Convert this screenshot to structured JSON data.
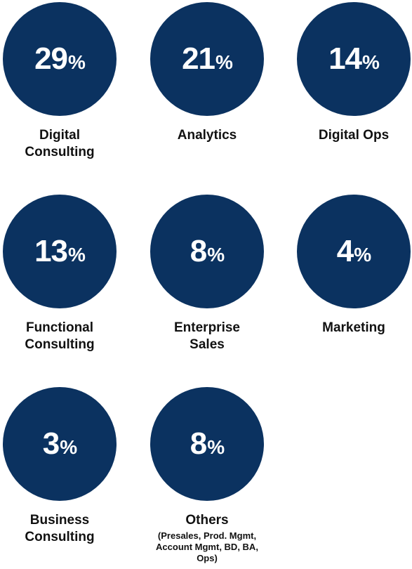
{
  "chart_data": {
    "type": "bar",
    "title": "",
    "unit": "%",
    "categories": [
      "Digital Consulting",
      "Analytics",
      "Digital Ops",
      "Functional Consulting",
      "Enterprise Sales",
      "Marketing",
      "Business Consulting",
      "Others"
    ],
    "values": [
      29,
      21,
      14,
      13,
      8,
      4,
      3,
      8
    ],
    "items": [
      {
        "value": "29",
        "unit": "%",
        "label_lines": [
          "Digital",
          "Consulting"
        ],
        "sublabel": ""
      },
      {
        "value": "21",
        "unit": "%",
        "label_lines": [
          "Analytics"
        ],
        "sublabel": ""
      },
      {
        "value": "14",
        "unit": "%",
        "label_lines": [
          "Digital Ops"
        ],
        "sublabel": ""
      },
      {
        "value": "13",
        "unit": "%",
        "label_lines": [
          "Functional",
          "Consulting"
        ],
        "sublabel": ""
      },
      {
        "value": "8",
        "unit": "%",
        "label_lines": [
          "Enterprise",
          "Sales"
        ],
        "sublabel": ""
      },
      {
        "value": "4",
        "unit": "%",
        "label_lines": [
          "Marketing"
        ],
        "sublabel": ""
      },
      {
        "value": "3",
        "unit": "%",
        "label_lines": [
          "Business",
          "Consulting"
        ],
        "sublabel": ""
      },
      {
        "value": "8",
        "unit": "%",
        "label_lines": [
          "Others"
        ],
        "sublabel": "(Presales, Prod. Mgmt, Account Mgmt, BD, BA, Ops)"
      }
    ],
    "colors": {
      "circle": "#0b3260",
      "value_text": "#ffffff",
      "label_text": "#111111"
    }
  }
}
